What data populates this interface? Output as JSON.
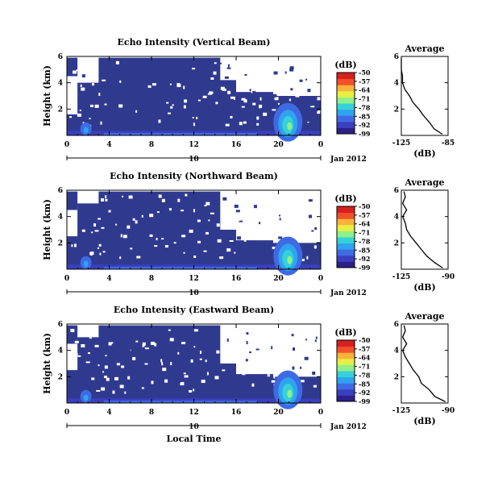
{
  "colors": {
    "background_fill": "#2f3a8f",
    "colormap": [
      "#2e1f8a",
      "#3a3fbd",
      "#3f6ae3",
      "#2ea3f0",
      "#36d1d6",
      "#8ef08a",
      "#e9ee45",
      "#f9b23a",
      "#f2502a",
      "#d6201f"
    ]
  },
  "chart_data": [
    {
      "type": "heatmap",
      "title": "Echo Intensity (Vertical Beam)",
      "ylabel": "Height (km)",
      "x_ticks": [
        "0",
        "4",
        "8",
        "12",
        "16",
        "20",
        "0"
      ],
      "xlim": [
        0,
        24
      ],
      "y_ticks": [
        "6",
        "4",
        "2"
      ],
      "ylim": [
        0,
        6
      ],
      "date_axis": {
        "day": "10",
        "month": "Jan 2012"
      },
      "colorbar": {
        "label": "(dB)",
        "ticks": [
          "-50",
          "-57",
          "-64",
          "-71",
          "-78",
          "-85",
          "-92",
          "-99"
        ]
      },
      "profile": {
        "title": "Average",
        "xlabel": "(dB)",
        "x_ticks": [
          "-125",
          "-85"
        ],
        "xlim": [
          -125,
          -85
        ],
        "y_ticks": [
          "6",
          "4",
          "2"
        ],
        "ylim": [
          0,
          6
        ],
        "heights": [
          0.1,
          0.5,
          1.0,
          1.5,
          2.0,
          2.5,
          3.0,
          3.5,
          4.0,
          4.5,
          5.0,
          5.5,
          5.9
        ],
        "values": [
          -90,
          -97,
          -101,
          -106,
          -110,
          -115,
          -118,
          -122,
          -124,
          -124,
          -125,
          -125,
          -125
        ]
      }
    },
    {
      "type": "heatmap",
      "title": "Echo Intensity (Northward Beam)",
      "ylabel": "Height (km)",
      "x_ticks": [
        "0",
        "4",
        "8",
        "12",
        "16",
        "20",
        "0"
      ],
      "xlim": [
        0,
        24
      ],
      "y_ticks": [
        "6",
        "4",
        "2"
      ],
      "ylim": [
        0,
        6
      ],
      "date_axis": {
        "day": "10",
        "month": "Jan 2012"
      },
      "colorbar": {
        "label": "(dB)",
        "ticks": [
          "-50",
          "-57",
          "-64",
          "-71",
          "-78",
          "-85",
          "-92",
          "-99"
        ]
      },
      "profile": {
        "title": "Average",
        "xlabel": "(dB)",
        "x_ticks": [
          "-125",
          "-90"
        ],
        "xlim": [
          -125,
          -90
        ],
        "y_ticks": [
          "6",
          "4",
          "2"
        ],
        "ylim": [
          0,
          6
        ],
        "heights": [
          0.1,
          0.5,
          1.0,
          1.5,
          2.0,
          2.5,
          3.0,
          3.5,
          4.0,
          4.5,
          5.0,
          5.5,
          5.9
        ],
        "values": [
          -94,
          -100,
          -106,
          -110,
          -114,
          -118,
          -121,
          -122,
          -124,
          -121,
          -124,
          -122,
          -123
        ]
      }
    },
    {
      "type": "heatmap",
      "title": "Echo Intensity (Eastward Beam)",
      "ylabel": "Height (km)",
      "x_ticks": [
        "0",
        "4",
        "8",
        "12",
        "16",
        "20",
        "0"
      ],
      "xlim": [
        0,
        24
      ],
      "y_ticks": [
        "6",
        "4",
        "2"
      ],
      "ylim": [
        0,
        6
      ],
      "date_axis": {
        "day": "10",
        "month": "Jan 2012"
      },
      "colorbar": {
        "label": "(dB)",
        "ticks": [
          "-50",
          "-57",
          "-64",
          "-71",
          "-78",
          "-85",
          "-92",
          "-99"
        ]
      },
      "profile": {
        "title": "Average",
        "xlabel": "(dB)",
        "x_ticks": [
          "-125",
          "-90"
        ],
        "xlim": [
          -125,
          -90
        ],
        "y_ticks": [
          "6",
          "4",
          "2"
        ],
        "ylim": [
          0,
          6
        ],
        "heights": [
          0.1,
          0.5,
          1.0,
          1.5,
          2.0,
          2.5,
          3.0,
          3.5,
          4.0,
          4.5,
          5.0,
          5.5,
          5.9
        ],
        "values": [
          -92,
          -100,
          -104,
          -110,
          -112,
          -116,
          -119,
          -122,
          -124,
          -121,
          -124,
          -122,
          -123
        ]
      }
    }
  ],
  "xlabel": "Local Time"
}
